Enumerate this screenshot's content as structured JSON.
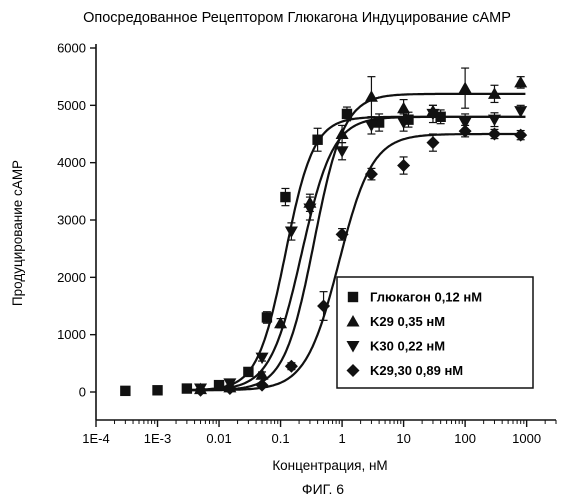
{
  "chart_data": {
    "type": "scatter",
    "title": "Опосредованное Рецептором Глюкагона Индуцирование cAMP",
    "xlabel": "Концентрация, нМ",
    "ylabel": "Продуцирование cAMP",
    "x_scale": "log",
    "xlim": [
      0.0001,
      3000
    ],
    "ylim": [
      0,
      6000
    ],
    "x_ticks": [
      "1E-4",
      "1E-3",
      "0.01",
      "0.1",
      "1",
      "10",
      "100",
      "1000"
    ],
    "y_ticks": [
      "0",
      "1000",
      "2000",
      "3000",
      "4000",
      "5000",
      "6000"
    ],
    "legend_position": "bottom-right",
    "grid": false,
    "series": [
      {
        "name": "Глюкагон 0,12 нМ",
        "marker": "square",
        "ec50": 0.12,
        "bottom": 30,
        "top": 4800,
        "hill": 1.9,
        "x": [
          0.0003,
          0.001,
          0.003,
          0.01,
          0.03,
          0.06,
          0.12,
          0.4,
          1.2,
          4,
          12,
          40
        ],
        "y": [
          20,
          30,
          60,
          120,
          350,
          1300,
          3400,
          4400,
          4850,
          4700,
          4750,
          4800
        ],
        "err": [
          0,
          0,
          0,
          30,
          60,
          100,
          150,
          200,
          120,
          150,
          130,
          120
        ]
      },
      {
        "name": "K29 0,35 нМ",
        "marker": "triangle-up",
        "ec50": 0.35,
        "bottom": 30,
        "top": 5200,
        "hill": 1.8,
        "x": [
          0.005,
          0.015,
          0.05,
          0.1,
          0.3,
          1,
          3,
          10,
          30,
          100,
          300,
          800
        ],
        "y": [
          50,
          80,
          300,
          1200,
          3300,
          4500,
          5150,
          4950,
          4900,
          5300,
          5200,
          5400
        ],
        "err": [
          0,
          0,
          50,
          80,
          150,
          150,
          350,
          150,
          100,
          350,
          150,
          100
        ]
      },
      {
        "name": "K30 0,22 нМ",
        "marker": "triangle-down",
        "ec50": 0.22,
        "bottom": 30,
        "top": 4800,
        "hill": 1.7,
        "x": [
          0.005,
          0.015,
          0.05,
          0.15,
          0.3,
          1,
          3,
          10,
          30,
          100,
          300,
          800
        ],
        "y": [
          60,
          150,
          600,
          2800,
          3200,
          4200,
          4650,
          4700,
          4850,
          4700,
          4750,
          4900
        ],
        "err": [
          0,
          30,
          60,
          150,
          200,
          150,
          150,
          150,
          150,
          150,
          120,
          100
        ]
      },
      {
        "name": "K29,30 0,89 нМ",
        "marker": "diamond",
        "ec50": 0.89,
        "bottom": 30,
        "top": 4500,
        "hill": 1.6,
        "x": [
          0.005,
          0.015,
          0.05,
          0.15,
          0.5,
          1,
          3,
          10,
          30,
          100,
          300,
          800
        ],
        "y": [
          30,
          60,
          120,
          450,
          1500,
          2750,
          3800,
          3950,
          4350,
          4550,
          4500,
          4480
        ],
        "err": [
          0,
          0,
          30,
          60,
          250,
          100,
          100,
          150,
          150,
          100,
          80,
          80
        ]
      }
    ]
  },
  "caption": "ФИГ. 6"
}
